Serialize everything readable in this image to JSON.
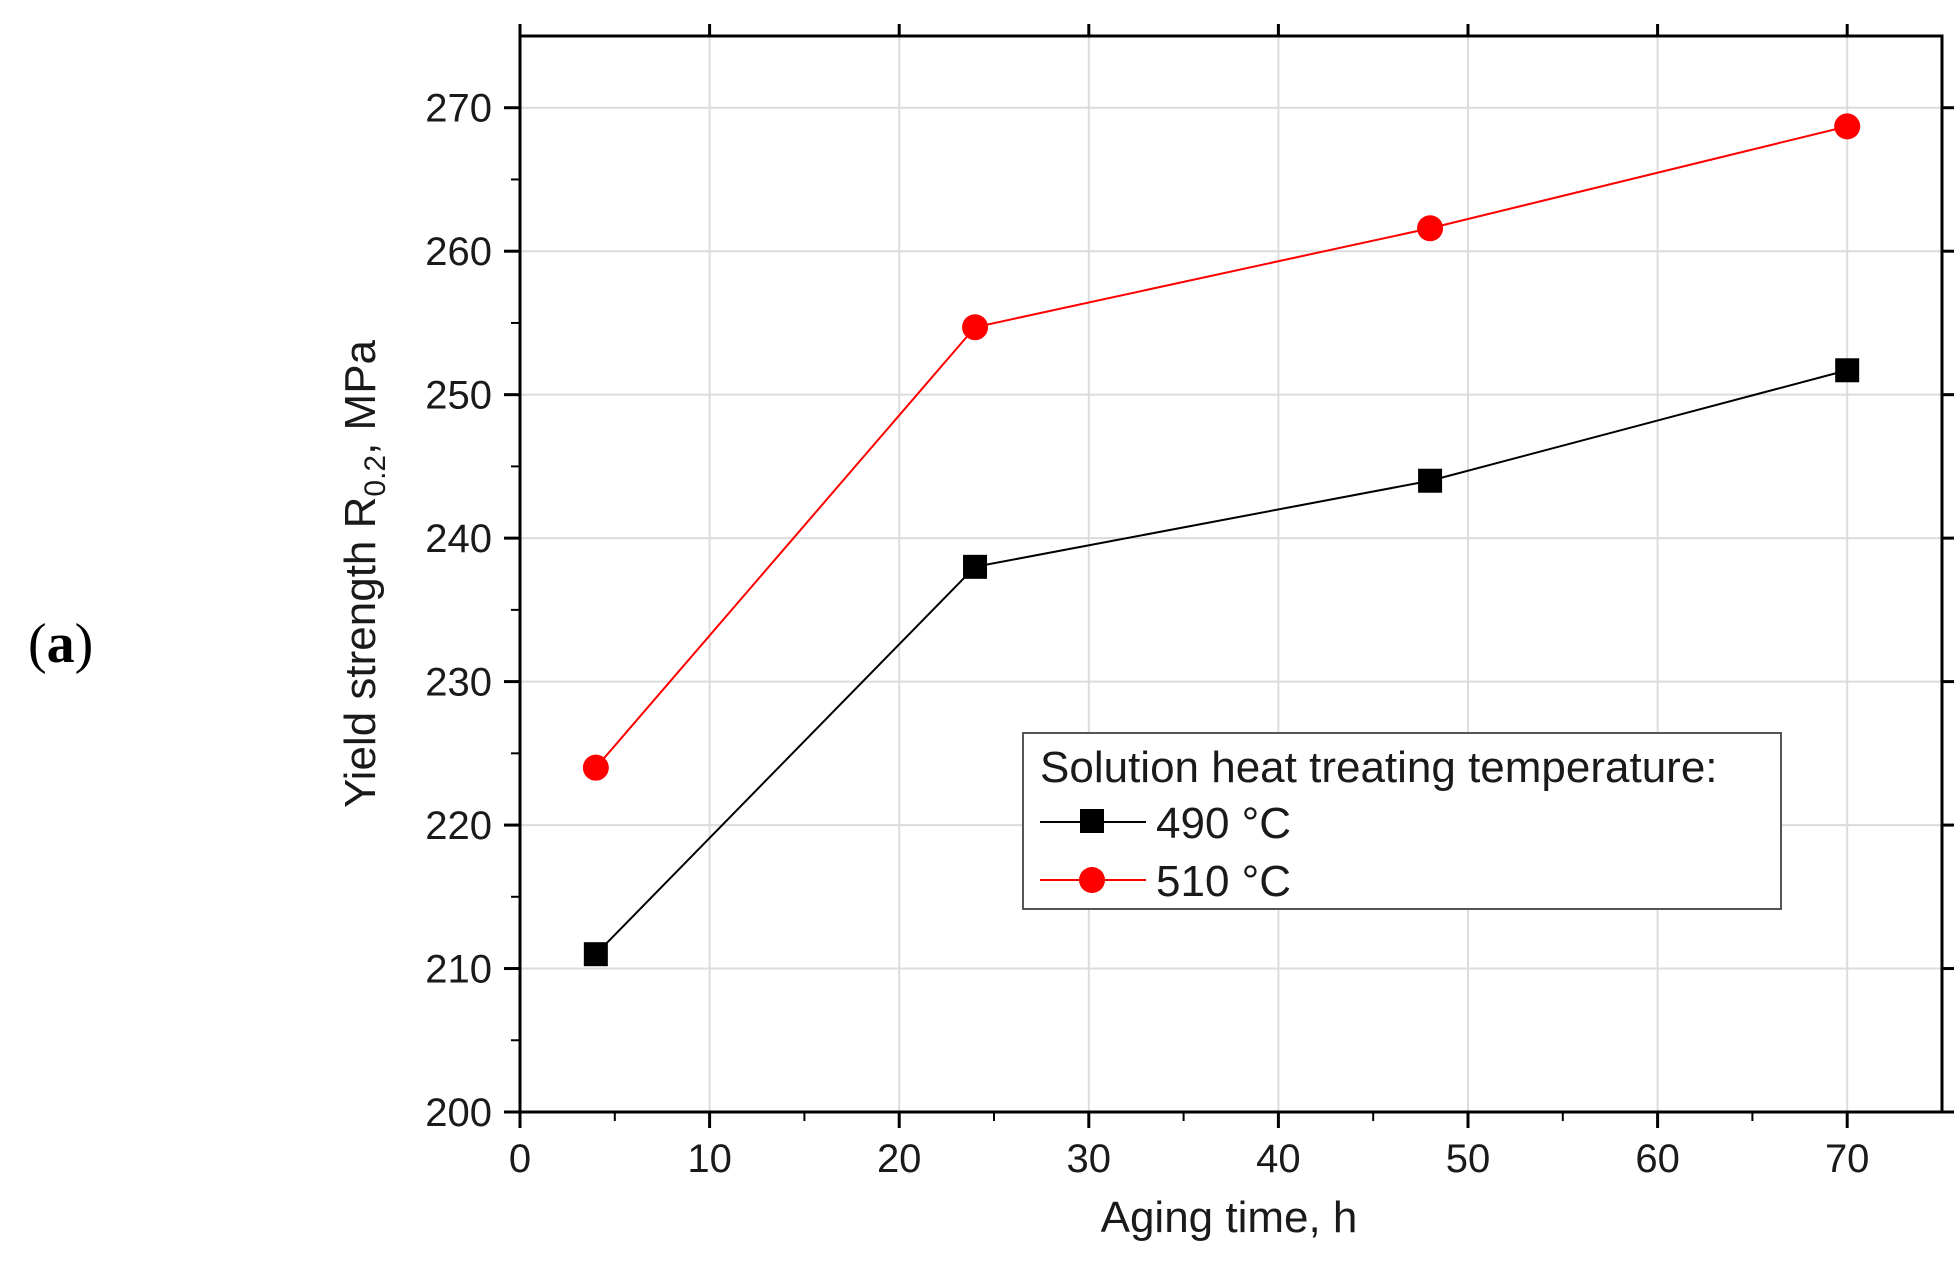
{
  "panel_label": {
    "open": "(",
    "letter": "a",
    "close": ")"
  },
  "chart_data": {
    "type": "line",
    "title": "",
    "xlabel": "Aging time, h",
    "ylabel": {
      "prefix": "Yield strength R",
      "subscript": "0.2",
      "suffix": ", MPa"
    },
    "xlim": [
      0,
      75
    ],
    "ylim": [
      200,
      275
    ],
    "xticks": [
      0,
      10,
      20,
      30,
      40,
      50,
      60,
      70
    ],
    "yticks": [
      200,
      210,
      220,
      230,
      240,
      250,
      260,
      270
    ],
    "grid": true,
    "legend": {
      "title": "Solution heat treating temperature:",
      "placement": "center-right"
    },
    "series": [
      {
        "name": "490 °C",
        "marker": "square",
        "color": "#000000",
        "x": [
          4,
          24,
          48,
          70
        ],
        "y": [
          211,
          238,
          244,
          251.7
        ]
      },
      {
        "name": "510 °C",
        "marker": "circle",
        "color": "#ff0000",
        "x": [
          4,
          24,
          48,
          70
        ],
        "y": [
          224,
          254.7,
          261.6,
          268.7
        ]
      }
    ]
  }
}
